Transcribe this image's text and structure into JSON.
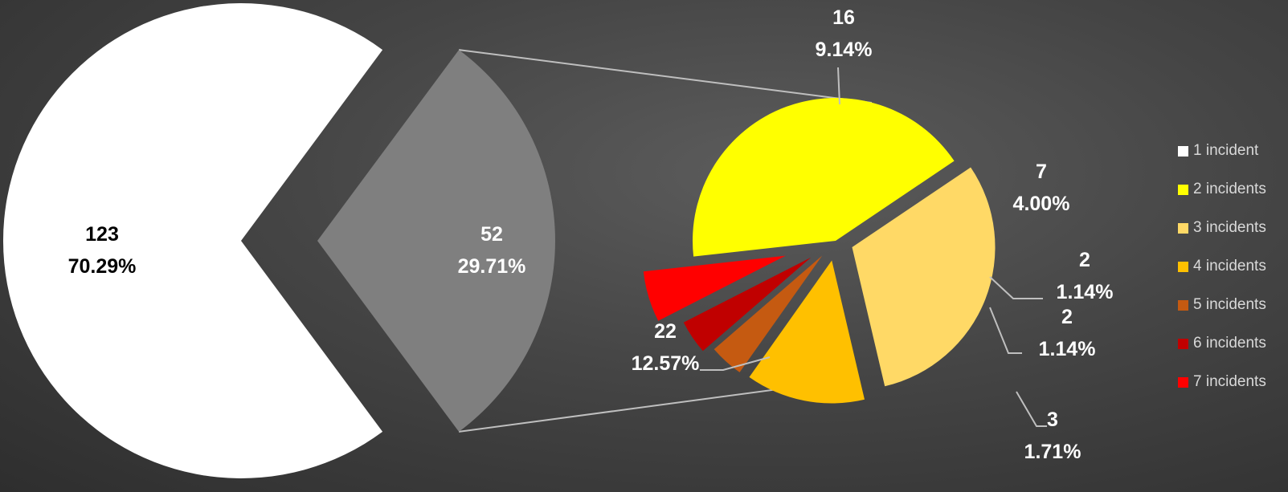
{
  "chart_data": {
    "type": "pie",
    "subtype": "pie-of-pie",
    "main_pie": {
      "slices": [
        {
          "label": "123",
          "percent": "70.29%",
          "value": 123,
          "color": "#ffffff",
          "text_color": "#000000"
        },
        {
          "label": "52",
          "percent": "29.71%",
          "value": 52,
          "color": "#7f7f7f",
          "text_color": "#ffffff",
          "is_other": true
        }
      ]
    },
    "secondary_pie": {
      "slices": [
        {
          "label": "16",
          "percent": "9.14%",
          "value": 16,
          "color": "#ffd966"
        },
        {
          "label": "7",
          "percent": "4.00%",
          "value": 7,
          "color": "#ffc000"
        },
        {
          "label": "2",
          "percent": "1.14%",
          "value": 2,
          "color": "#c55a11"
        },
        {
          "label": "2",
          "percent": "1.14%",
          "value": 2,
          "color": "#c00000"
        },
        {
          "label": "3",
          "percent": "1.71%",
          "value": 3,
          "color": "#ff0000"
        },
        {
          "label": "22",
          "percent": "12.57%",
          "value": 22,
          "color": "#ffff00"
        }
      ]
    },
    "legend": {
      "position": "right",
      "items": [
        {
          "label": "1 incident",
          "color": "#ffffff"
        },
        {
          "label": "2 incidents",
          "color": "#ffff00"
        },
        {
          "label": "3 incidents",
          "color": "#ffd966"
        },
        {
          "label": "4 incidents",
          "color": "#ffc000"
        },
        {
          "label": "5 incidents",
          "color": "#c55a11"
        },
        {
          "label": "6 incidents",
          "color": "#c00000"
        },
        {
          "label": "7 incidents",
          "color": "#ff0000"
        }
      ]
    },
    "colors": {
      "background": "#454545",
      "connector": "#bfbfbf",
      "label": "#ffffff"
    }
  }
}
